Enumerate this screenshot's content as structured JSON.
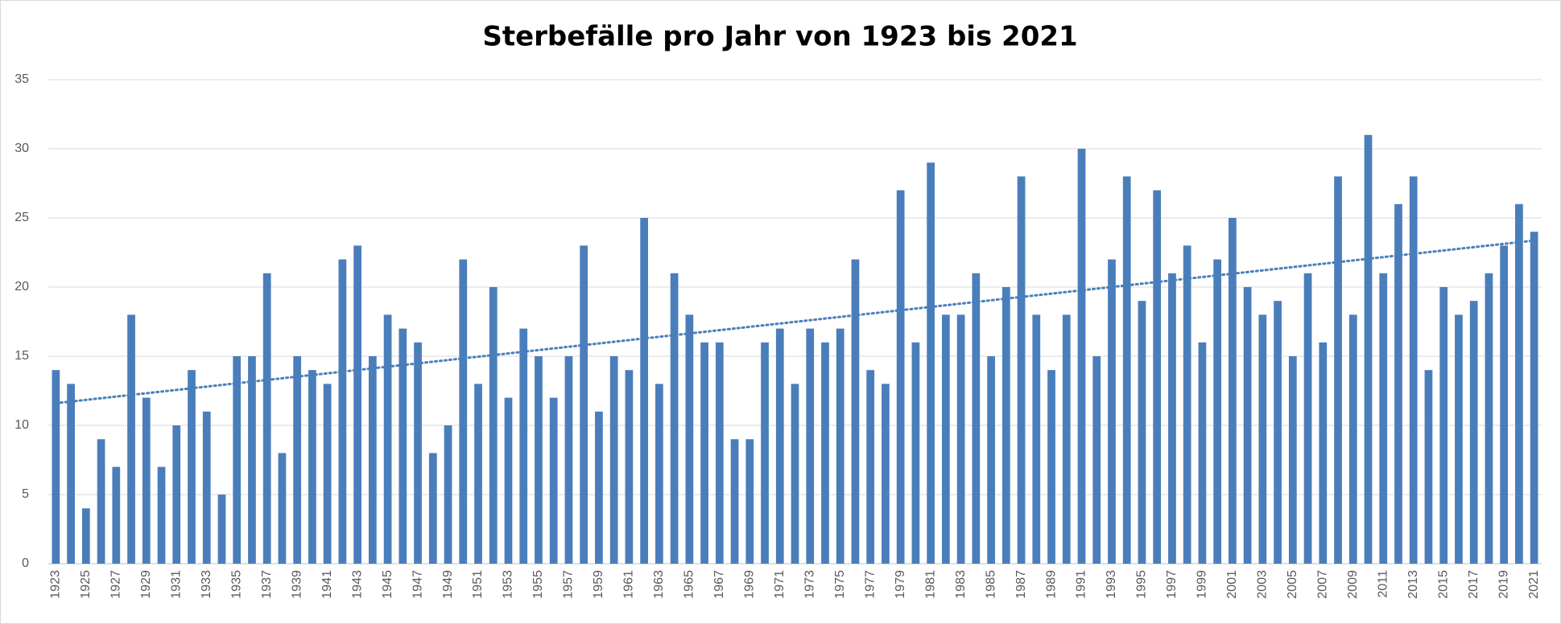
{
  "chart_data": {
    "type": "bar",
    "title": "Sterbefälle pro Jahr von 1923 bis 2021",
    "categories": [
      "1923",
      null,
      "1925",
      null,
      "1927",
      null,
      "1929",
      null,
      "1931",
      null,
      "1933",
      null,
      "1935",
      null,
      "1937",
      null,
      "1939",
      null,
      "1941",
      null,
      "1943",
      null,
      "1945",
      null,
      "1947",
      null,
      "1949",
      null,
      "1951",
      null,
      "1953",
      null,
      "1955",
      null,
      "1957",
      null,
      "1959",
      null,
      "1961",
      null,
      "1963",
      null,
      "1965",
      null,
      "1967",
      null,
      "1969",
      null,
      "1971",
      null,
      "1973",
      null,
      "1975",
      null,
      "1977",
      null,
      "1979",
      null,
      "1981",
      null,
      "1983",
      null,
      "1985",
      null,
      "1987",
      null,
      "1989",
      null,
      "1991",
      null,
      "1993",
      null,
      "1995",
      null,
      "1997",
      null,
      "1999",
      null,
      "2001",
      null,
      "2003",
      null,
      "2005",
      null,
      "2007",
      null,
      "2009",
      null,
      "2011",
      null,
      "2013",
      null,
      "2015",
      null,
      "2017",
      null,
      "2019",
      null,
      "2021"
    ],
    "values": [
      14,
      13,
      4,
      9,
      7,
      18,
      12,
      7,
      10,
      14,
      11,
      5,
      15,
      15,
      21,
      8,
      15,
      14,
      13,
      22,
      23,
      15,
      18,
      17,
      16,
      8,
      10,
      22,
      13,
      20,
      12,
      17,
      15,
      12,
      15,
      23,
      11,
      15,
      14,
      25,
      13,
      21,
      18,
      16,
      16,
      9,
      9,
      16,
      17,
      13,
      17,
      16,
      17,
      22,
      14,
      13,
      27,
      16,
      29,
      18,
      18,
      21,
      15,
      20,
      28,
      18,
      14,
      18,
      30,
      15,
      22,
      28,
      19,
      27,
      21,
      23,
      16,
      22,
      25,
      20,
      18,
      19,
      15,
      21,
      16,
      28,
      18,
      31,
      21,
      26,
      28,
      14,
      20,
      18,
      19,
      21,
      23,
      26,
      24
    ],
    "color": "#4a7ebb",
    "ylim": [
      0,
      35
    ],
    "yticks": [
      0,
      5,
      10,
      15,
      20,
      25,
      30,
      35
    ],
    "grid": true,
    "trendline": "linear"
  }
}
